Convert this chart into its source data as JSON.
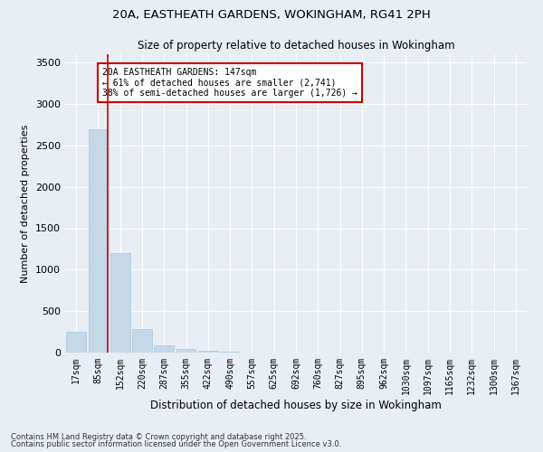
{
  "title_line1": "20A, EASTHEATH GARDENS, WOKINGHAM, RG41 2PH",
  "title_line2": "Size of property relative to detached houses in Wokingham",
  "xlabel": "Distribution of detached houses by size in Wokingham",
  "ylabel": "Number of detached properties",
  "bar_color": "#c5d8e8",
  "bar_edge_color": "#a8c8de",
  "vline_color": "#cc0000",
  "categories": [
    "17sqm",
    "85sqm",
    "152sqm",
    "220sqm",
    "287sqm",
    "355sqm",
    "422sqm",
    "490sqm",
    "557sqm",
    "625sqm",
    "692sqm",
    "760sqm",
    "827sqm",
    "895sqm",
    "962sqm",
    "1030sqm",
    "1097sqm",
    "1165sqm",
    "1232sqm",
    "1300sqm",
    "1367sqm"
  ],
  "values": [
    250,
    2700,
    1200,
    280,
    90,
    45,
    25,
    15,
    4,
    2,
    1,
    0,
    0,
    0,
    0,
    0,
    0,
    0,
    0,
    0,
    0
  ],
  "ylim": [
    0,
    3600
  ],
  "yticks": [
    0,
    500,
    1000,
    1500,
    2000,
    2500,
    3000,
    3500
  ],
  "annotation_title": "20A EASTHEATH GARDENS: 147sqm",
  "annotation_line2": "← 61% of detached houses are smaller (2,741)",
  "annotation_line3": "38% of semi-detached houses are larger (1,726) →",
  "footnote1": "Contains HM Land Registry data © Crown copyright and database right 2025.",
  "footnote2": "Contains public sector information licensed under the Open Government Licence v3.0.",
  "background_color": "#e8eef4",
  "plot_background": "#e8eef4",
  "grid_color": "#ffffff",
  "vline_bar_index": 1
}
